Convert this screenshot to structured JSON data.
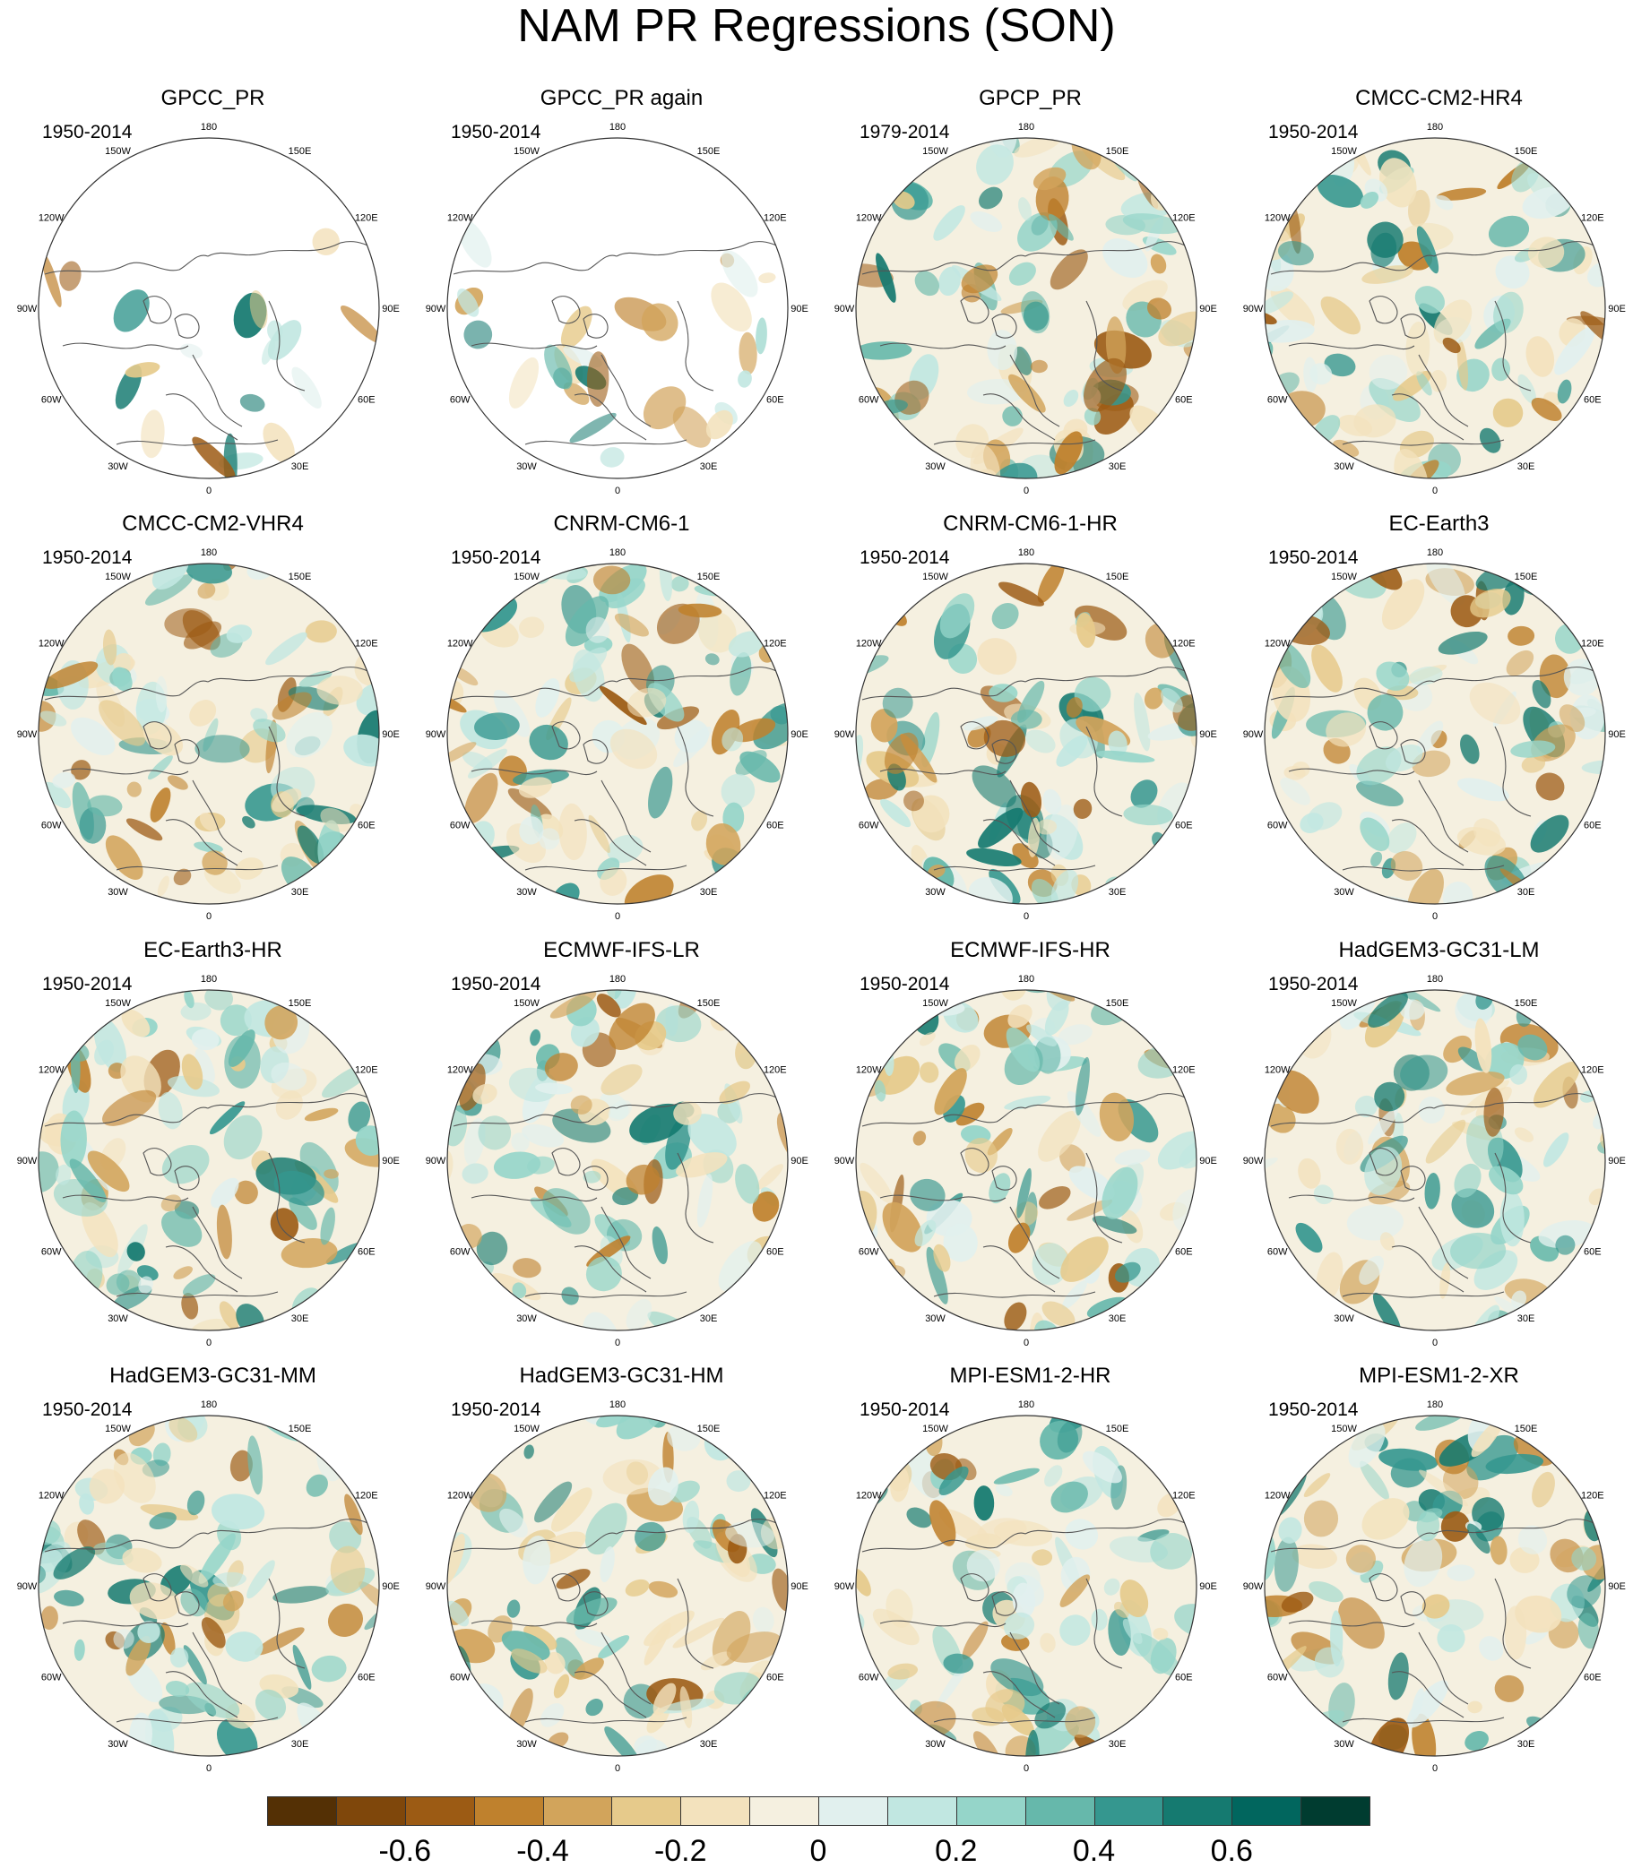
{
  "title": "NAM PR Regressions (SON)",
  "longitude_labels": [
    "180",
    "150E",
    "120E",
    "90E",
    "60E",
    "30E",
    "0",
    "30W",
    "60W",
    "90W",
    "120W",
    "150W"
  ],
  "panels": [
    {
      "title": "GPCC_PR",
      "period": "1950-2014",
      "ocean_masked": true
    },
    {
      "title": "GPCC_PR again",
      "period": "1950-2014",
      "ocean_masked": true
    },
    {
      "title": "GPCP_PR",
      "period": "1979-2014",
      "ocean_masked": false
    },
    {
      "title": "CMCC-CM2-HR4",
      "period": "1950-2014",
      "ocean_masked": false
    },
    {
      "title": "CMCC-CM2-VHR4",
      "period": "1950-2014",
      "ocean_masked": false
    },
    {
      "title": "CNRM-CM6-1",
      "period": "1950-2014",
      "ocean_masked": false
    },
    {
      "title": "CNRM-CM6-1-HR",
      "period": "1950-2014",
      "ocean_masked": false
    },
    {
      "title": "EC-Earth3",
      "period": "1950-2014",
      "ocean_masked": false
    },
    {
      "title": "EC-Earth3-HR",
      "period": "1950-2014",
      "ocean_masked": false
    },
    {
      "title": "ECMWF-IFS-LR",
      "period": "1950-2014",
      "ocean_masked": false
    },
    {
      "title": "ECMWF-IFS-HR",
      "period": "1950-2014",
      "ocean_masked": false
    },
    {
      "title": "HadGEM3-GC31-LM",
      "period": "1950-2014",
      "ocean_masked": false
    },
    {
      "title": "HadGEM3-GC31-MM",
      "period": "1950-2014",
      "ocean_masked": false
    },
    {
      "title": "HadGEM3-GC31-HM",
      "period": "1950-2014",
      "ocean_masked": false
    },
    {
      "title": "MPI-ESM1-2-HR",
      "period": "1950-2014",
      "ocean_masked": false
    },
    {
      "title": "MPI-ESM1-2-XR",
      "period": "1950-2014",
      "ocean_masked": false
    }
  ],
  "colorbar": {
    "colors": [
      "#543005",
      "#7f470b",
      "#9c5b14",
      "#bf812d",
      "#d2a45b",
      "#e6ca8b",
      "#f3e2bd",
      "#f5f0e0",
      "#e1f0ee",
      "#c1e7e1",
      "#95d5c9",
      "#66b8ab",
      "#35978f",
      "#157a70",
      "#01665e",
      "#003c30"
    ],
    "tick_labels": [
      "-0.6",
      "-0.4",
      "-0.2",
      "0",
      "0.2",
      "0.4",
      "0.6"
    ]
  }
}
